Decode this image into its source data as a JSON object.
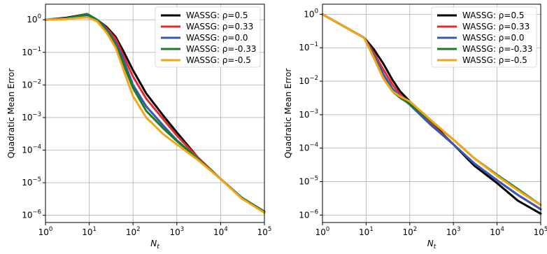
{
  "chart_data": [
    {
      "type": "line",
      "title": "",
      "xlabel": "N",
      "xlabel_sub": "t",
      "ylabel": "Quadratic Mean Error",
      "xscale": "log",
      "yscale": "log",
      "xlim": [
        1,
        100000
      ],
      "ylim": [
        6e-07,
        3
      ],
      "grid": true,
      "legend": "top-right",
      "x_ticks": [
        {
          "base": "10",
          "exp": "0"
        },
        {
          "base": "10",
          "exp": "1"
        },
        {
          "base": "10",
          "exp": "2"
        },
        {
          "base": "10",
          "exp": "3"
        },
        {
          "base": "10",
          "exp": "4"
        },
        {
          "base": "10",
          "exp": "5"
        }
      ],
      "y_ticks": [
        {
          "base": "10",
          "exp": "0"
        },
        {
          "base": "10",
          "exp": "−1"
        },
        {
          "base": "10",
          "exp": "−2"
        },
        {
          "base": "10",
          "exp": "−3"
        },
        {
          "base": "10",
          "exp": "−4"
        },
        {
          "base": "10",
          "exp": "−5"
        },
        {
          "base": "10",
          "exp": "−6"
        }
      ],
      "series": [
        {
          "name": "WASSG: ρ=0.5",
          "color": "#000000",
          "x": [
            1,
            3,
            9,
            15,
            25,
            40,
            60,
            100,
            200,
            500,
            1000,
            3000,
            10000,
            30000,
            100000
          ],
          "y": [
            1.0,
            1.15,
            1.5,
            1.0,
            0.6,
            0.3,
            0.11,
            0.028,
            0.0055,
            0.0011,
            0.00035,
            6e-05,
            1.3e-05,
            3.5e-06,
            1.2e-06
          ]
        },
        {
          "name": "WASSG: ρ=0.33",
          "color": "#e32b2b",
          "x": [
            1,
            3,
            9,
            15,
            25,
            40,
            60,
            100,
            200,
            500,
            1000,
            3000,
            10000,
            30000,
            100000
          ],
          "y": [
            1.0,
            1.1,
            1.45,
            1.0,
            0.55,
            0.26,
            0.08,
            0.018,
            0.0038,
            0.00085,
            0.00028,
            6e-05,
            1.3e-05,
            3.5e-06,
            1.3e-06
          ]
        },
        {
          "name": "WASSG: ρ=0.0",
          "color": "#3b58b0",
          "x": [
            1,
            3,
            9,
            15,
            25,
            40,
            60,
            100,
            200,
            500,
            1000,
            3000,
            10000,
            30000,
            100000
          ],
          "y": [
            1.0,
            1.1,
            1.4,
            1.0,
            0.5,
            0.2,
            0.06,
            0.01,
            0.0022,
            0.00055,
            0.0002,
            5.5e-05,
            1.3e-05,
            3.5e-06,
            1.3e-06
          ]
        },
        {
          "name": "WASSG: ρ=-0.33",
          "color": "#1e7b2a",
          "x": [
            1,
            3,
            9,
            15,
            25,
            40,
            60,
            100,
            200,
            500,
            1000,
            3000,
            10000,
            30000,
            100000
          ],
          "y": [
            1.0,
            1.1,
            1.5,
            1.0,
            0.48,
            0.17,
            0.045,
            0.008,
            0.0016,
            0.00045,
            0.00019,
            5.5e-05,
            1.3e-05,
            3.5e-06,
            1.3e-06
          ]
        },
        {
          "name": "WASSG: ρ=-0.5",
          "color": "#f2a51a",
          "x": [
            1,
            3,
            9,
            15,
            25,
            40,
            60,
            100,
            200,
            500,
            1000,
            3000,
            10000,
            30000,
            100000
          ],
          "y": [
            1.0,
            1.05,
            1.2,
            0.9,
            0.4,
            0.14,
            0.03,
            0.0045,
            0.001,
            0.0003,
            0.00015,
            5e-05,
            1.3e-05,
            3.3e-06,
            1.2e-06
          ]
        }
      ]
    },
    {
      "type": "line",
      "title": "",
      "xlabel": "N",
      "xlabel_sub": "t",
      "ylabel": "Quadratic Mean Error",
      "xscale": "log",
      "yscale": "log",
      "xlim": [
        1,
        100000
      ],
      "ylim": [
        6e-07,
        2
      ],
      "grid": true,
      "legend": "top-right",
      "x_ticks": [
        {
          "base": "10",
          "exp": "0"
        },
        {
          "base": "10",
          "exp": "1"
        },
        {
          "base": "10",
          "exp": "2"
        },
        {
          "base": "10",
          "exp": "3"
        },
        {
          "base": "10",
          "exp": "4"
        },
        {
          "base": "10",
          "exp": "5"
        }
      ],
      "y_ticks": [
        {
          "base": "10",
          "exp": "0"
        },
        {
          "base": "10",
          "exp": "−1"
        },
        {
          "base": "10",
          "exp": "−2"
        },
        {
          "base": "10",
          "exp": "−3"
        },
        {
          "base": "10",
          "exp": "−4"
        },
        {
          "base": "10",
          "exp": "−5"
        },
        {
          "base": "10",
          "exp": "−6"
        }
      ],
      "series": [
        {
          "name": "WASSG: ρ=0.5",
          "color": "#000000",
          "x": [
            1,
            9,
            15,
            25,
            40,
            60,
            100,
            300,
            1000,
            3000,
            10000,
            30000,
            100000
          ],
          "y": [
            1.0,
            0.2,
            0.09,
            0.033,
            0.011,
            0.005,
            0.0025,
            0.0006,
            0.00013,
            3e-05,
            9e-06,
            2.7e-06,
            1.1e-06
          ]
        },
        {
          "name": "WASSG: ρ=0.33",
          "color": "#e32b2b",
          "x": [
            1,
            9,
            15,
            25,
            40,
            60,
            100,
            300,
            1000,
            3000,
            10000,
            30000,
            100000
          ],
          "y": [
            1.0,
            0.2,
            0.07,
            0.022,
            0.008,
            0.004,
            0.0022,
            0.00055,
            0.00013,
            3.5e-05,
            1.1e-05,
            4e-06,
            1.5e-06
          ]
        },
        {
          "name": "WASSG: ρ=0.0",
          "color": "#3b58b0",
          "x": [
            1,
            9,
            15,
            25,
            40,
            60,
            100,
            300,
            1000,
            3000,
            10000,
            30000,
            100000
          ],
          "y": [
            1.0,
            0.2,
            0.06,
            0.016,
            0.006,
            0.0035,
            0.002,
            0.0005,
            0.00013,
            3.5e-05,
            1.1e-05,
            4e-06,
            1.5e-06
          ]
        },
        {
          "name": "WASSG: ρ=-0.33",
          "color": "#1e7b2a",
          "x": [
            1,
            9,
            15,
            25,
            40,
            60,
            100,
            300,
            1000,
            3000,
            10000,
            30000,
            100000
          ],
          "y": [
            1.0,
            0.2,
            0.05,
            0.012,
            0.005,
            0.0032,
            0.0021,
            0.00065,
            0.00018,
            5e-05,
            1.6e-05,
            6e-06,
            2e-06
          ]
        },
        {
          "name": "WASSG: ρ=-0.5",
          "color": "#f2a51a",
          "x": [
            1,
            9,
            15,
            25,
            40,
            60,
            100,
            300,
            1000,
            3000,
            10000,
            30000,
            100000
          ],
          "y": [
            1.0,
            0.2,
            0.05,
            0.012,
            0.005,
            0.0035,
            0.0025,
            0.0007,
            0.00018,
            5e-05,
            1.5e-05,
            5.5e-06,
            2e-06
          ]
        }
      ]
    }
  ]
}
